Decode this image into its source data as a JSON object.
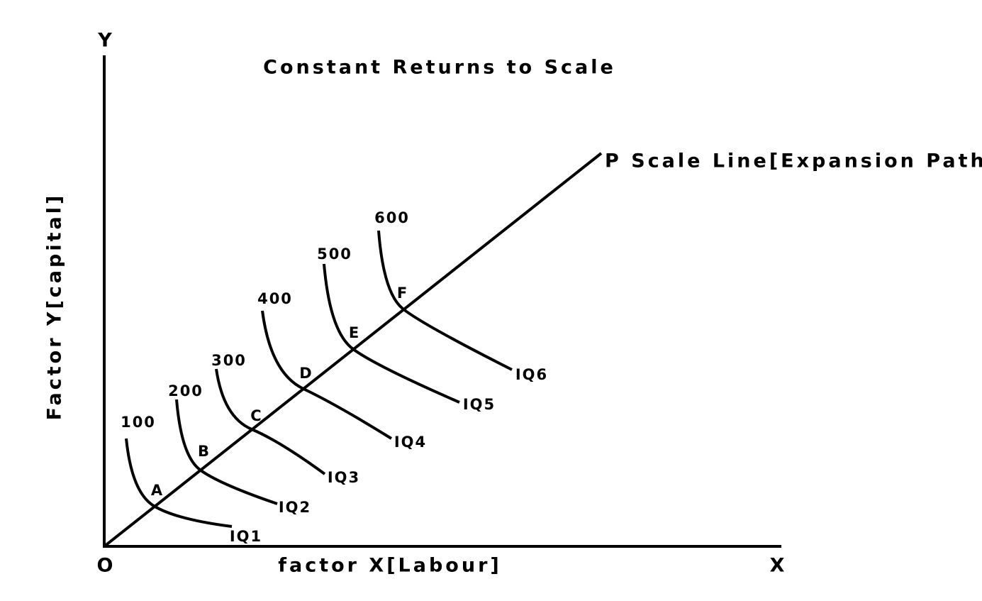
{
  "title": "Constant Returns to Scale",
  "axes": {
    "y_name": "Y",
    "x_name": "X",
    "origin": "O",
    "y_label": "Factor Y[capital]",
    "x_label": "factor X[Labour]"
  },
  "scale_line": {
    "label": "P  Scale Line[Expansion Path]"
  },
  "isoquants": [
    {
      "output": "100",
      "point": "A",
      "name": "IQ1"
    },
    {
      "output": "200",
      "point": "B",
      "name": "IQ2"
    },
    {
      "output": "300",
      "point": "C",
      "name": "IQ3"
    },
    {
      "output": "400",
      "point": "D",
      "name": "IQ4"
    },
    {
      "output": "500",
      "point": "E",
      "name": "IQ5"
    },
    {
      "output": "600",
      "point": "F",
      "name": "IQ6"
    }
  ]
}
